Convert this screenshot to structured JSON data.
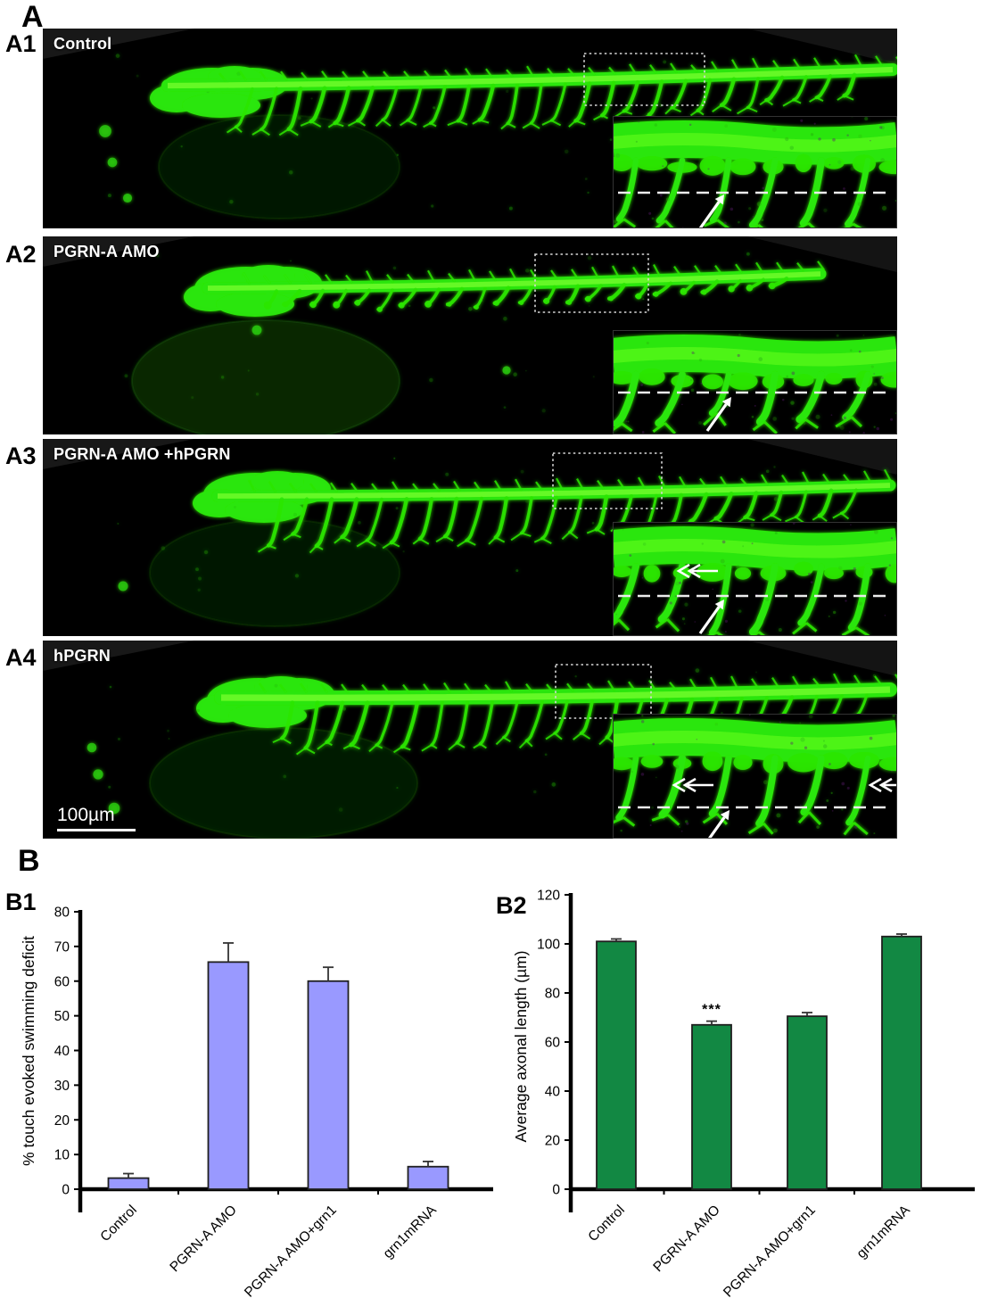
{
  "figure": {
    "section_a": "A",
    "section_b": "B",
    "scalebar_label": "100µm",
    "image_colors": {
      "signal_green": "#2ce607",
      "background": "#000000"
    },
    "panels": [
      {
        "label": "A1",
        "title": "Control",
        "inset_annotations": [
          "dashed-line",
          "arrow"
        ]
      },
      {
        "label": "A2",
        "title": "PGRN-A AMO",
        "inset_annotations": [
          "dashed-line",
          "arrow"
        ]
      },
      {
        "label": "A3",
        "title": "PGRN-A AMO +hPGRN",
        "inset_annotations": [
          "dashed-line",
          "open-double-arrow",
          "arrow"
        ]
      },
      {
        "label": "A4",
        "title": "hPGRN",
        "inset_annotations": [
          "dashed-line",
          "open-double-arrow",
          "open-double-arrow",
          "arrow"
        ]
      }
    ]
  },
  "chart_data": [
    {
      "id": "B1",
      "label": "B1",
      "type": "bar",
      "categories": [
        "Control",
        "PGRN-A AMO",
        "PGRN-A AMO+grn1",
        "grn1mRNA"
      ],
      "values": [
        3.2,
        65.5,
        60,
        6.5
      ],
      "errors": [
        1.3,
        5.5,
        4,
        1.5
      ],
      "title": "",
      "xlabel": "",
      "ylabel": "% touch evoked swimming deficit",
      "ylim": [
        0,
        80
      ],
      "ytick_step": 10,
      "grid": false,
      "legend": false,
      "bar_color": "#9999ff",
      "bar_border": "#1f1f1f",
      "annotations": []
    },
    {
      "id": "B2",
      "label": "B2",
      "type": "bar",
      "categories": [
        "Control",
        "PGRN-A AMO",
        "PGRN-A AMO+grn1",
        "grn1mRNA"
      ],
      "values": [
        101,
        67,
        70.5,
        103
      ],
      "errors": [
        1,
        1.5,
        1.5,
        1
      ],
      "title": "",
      "xlabel": "",
      "ylabel": "Average axonal length (µm)",
      "ylim": [
        0,
        120
      ],
      "ytick_step": 20,
      "grid": false,
      "legend": false,
      "bar_color": "#128843",
      "bar_border": "#1f1f1f",
      "annotations": [
        {
          "bar_index": 1,
          "text": "***"
        }
      ]
    }
  ]
}
